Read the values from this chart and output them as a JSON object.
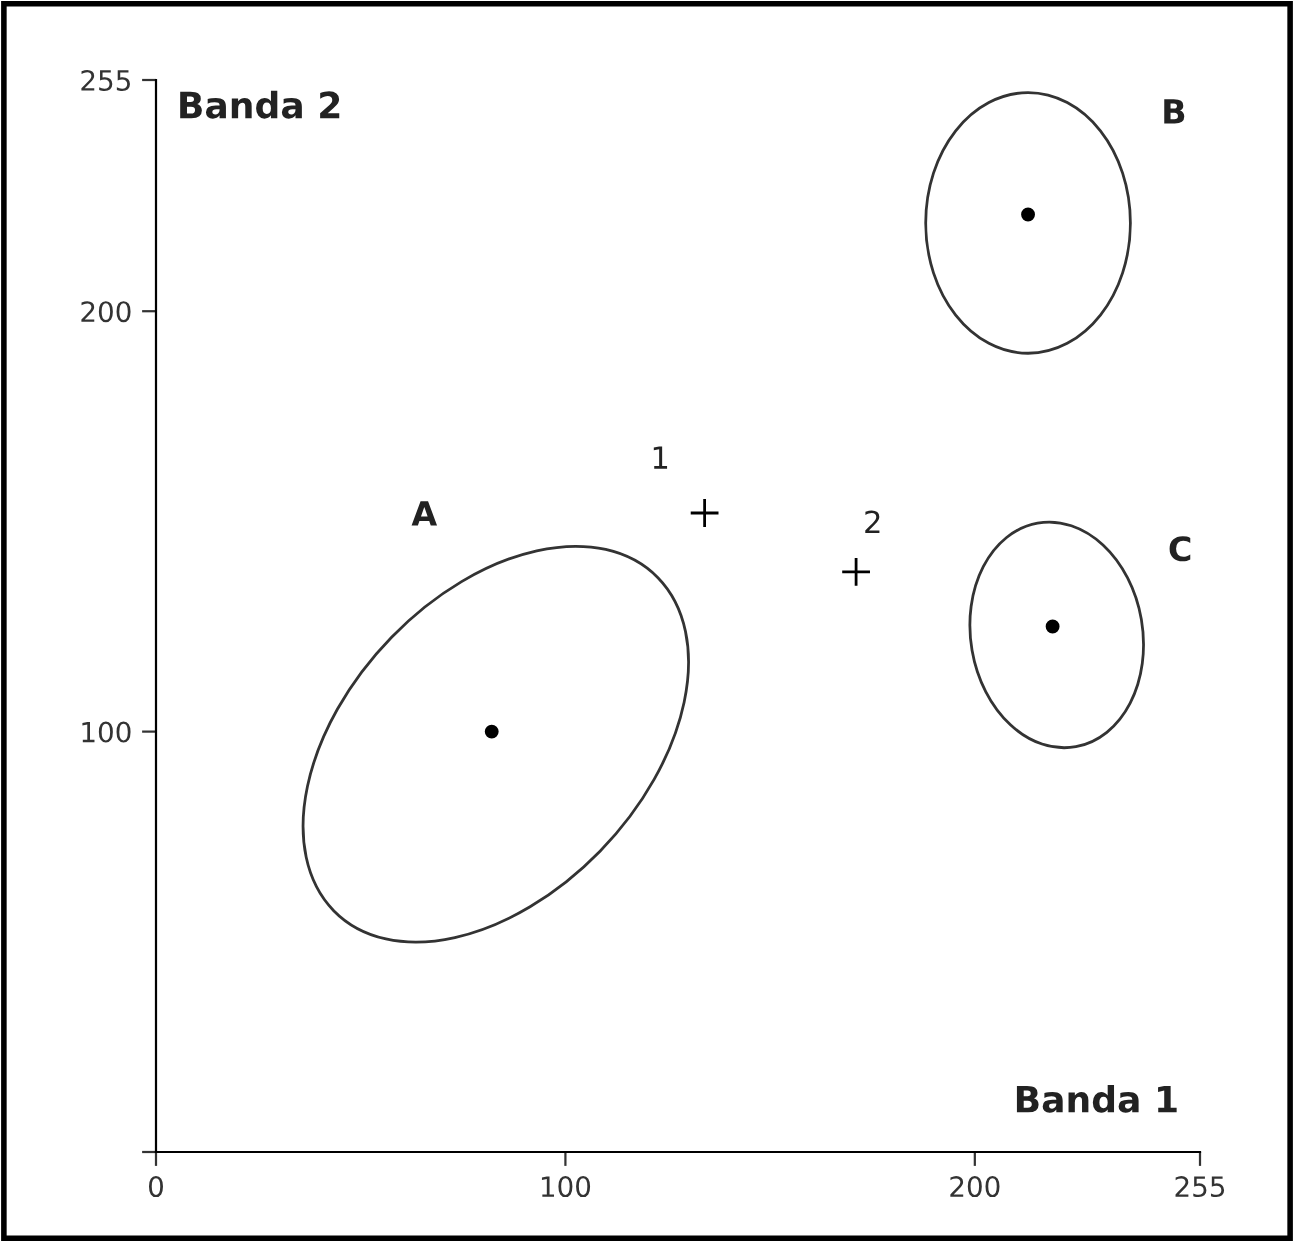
{
  "chart_data": {
    "type": "scatter",
    "xlabel": "Banda 1",
    "ylabel": "Banda 2",
    "xlim": [
      0,
      255
    ],
    "ylim": [
      0,
      255
    ],
    "xticks": [
      0,
      100,
      200,
      255
    ],
    "yticks": [
      {
        "value": 0,
        "label": null
      },
      100,
      200,
      255
    ],
    "grid": false,
    "series": [
      {
        "color": "#000000",
        "marker": "circle",
        "x": [
          82,
          213,
          219
        ],
        "values": [
          100,
          223,
          125
        ]
      },
      {
        "color": "#000000",
        "marker": "cross",
        "x": [
          134,
          171
        ],
        "values": [
          152,
          138
        ]
      }
    ],
    "annotations": [
      "A",
      "B",
      "C",
      {
        "text": "1",
        "x": 134,
        "y": 152
      },
      {
        "text": "2",
        "x": 171,
        "y": 138
      }
    ]
  }
}
